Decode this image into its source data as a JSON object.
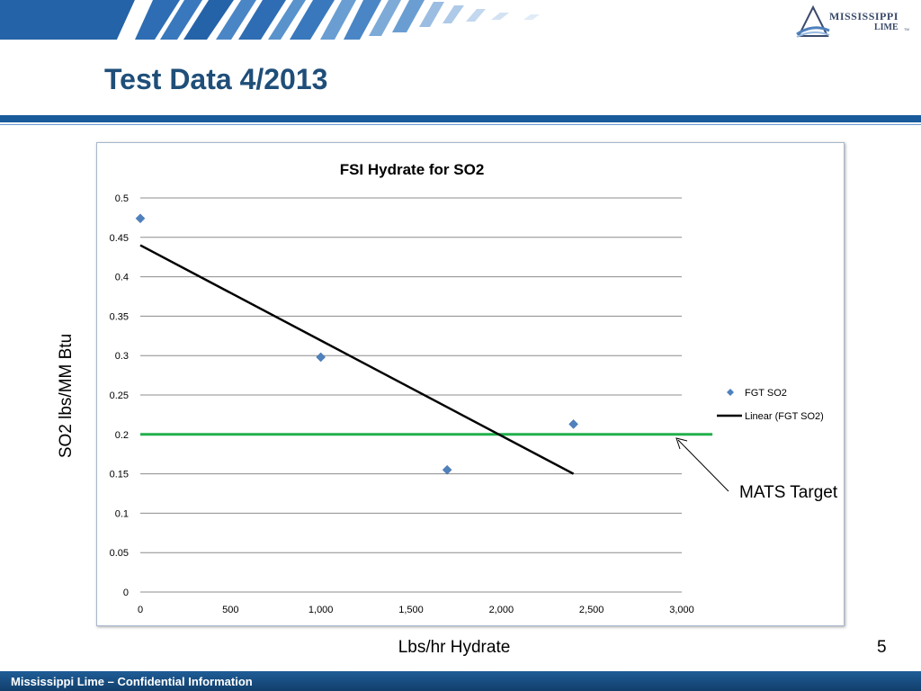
{
  "slide": {
    "title": "Test Data 4/2013",
    "page_number": "5",
    "footer": "Mississippi Lime – Confidential Information"
  },
  "logo": {
    "line1": "MISSISSIPPI",
    "line2": "LIME",
    "tm": "TM"
  },
  "colors": {
    "title": "#1f4e79",
    "rule": "#1a5b9c",
    "footer": "#1a5490",
    "markers": "#4f81bd",
    "trendline": "#000000",
    "target_line": "#22b14c"
  },
  "chart_data": {
    "type": "scatter",
    "title": "FSI Hydrate for SO2",
    "xlabel": "Lbs/hr Hydrate",
    "ylabel": "SO2 lbs/MM Btu",
    "xlim": [
      0,
      3000
    ],
    "ylim": [
      0,
      0.5
    ],
    "x_ticks": [
      0,
      500,
      1000,
      1500,
      2000,
      2500,
      3000
    ],
    "x_tick_labels": [
      "0",
      "500",
      "1,000",
      "1,500",
      "2,000",
      "2,500",
      "3,000"
    ],
    "y_ticks": [
      0,
      0.05,
      0.1,
      0.15,
      0.2,
      0.25,
      0.3,
      0.35,
      0.4,
      0.45,
      0.5
    ],
    "y_tick_labels": [
      "0",
      "0.05",
      "0.1",
      "0.15",
      "0.2",
      "0.25",
      "0.3",
      "0.35",
      "0.4",
      "0.45",
      "0.5"
    ],
    "grid": "horizontal",
    "legend_position": "right",
    "series": [
      {
        "name": "FGT SO2",
        "x": [
          0,
          1000,
          1700,
          2400
        ],
        "y": [
          0.474,
          0.298,
          0.155,
          0.213
        ]
      }
    ],
    "trendline": {
      "name": "Linear (FGT SO2)",
      "x": [
        0,
        2400
      ],
      "y": [
        0.44,
        0.15
      ]
    },
    "reference_line": {
      "y": 0.2,
      "x": [
        0,
        3170
      ],
      "label": "MATS Target"
    }
  }
}
